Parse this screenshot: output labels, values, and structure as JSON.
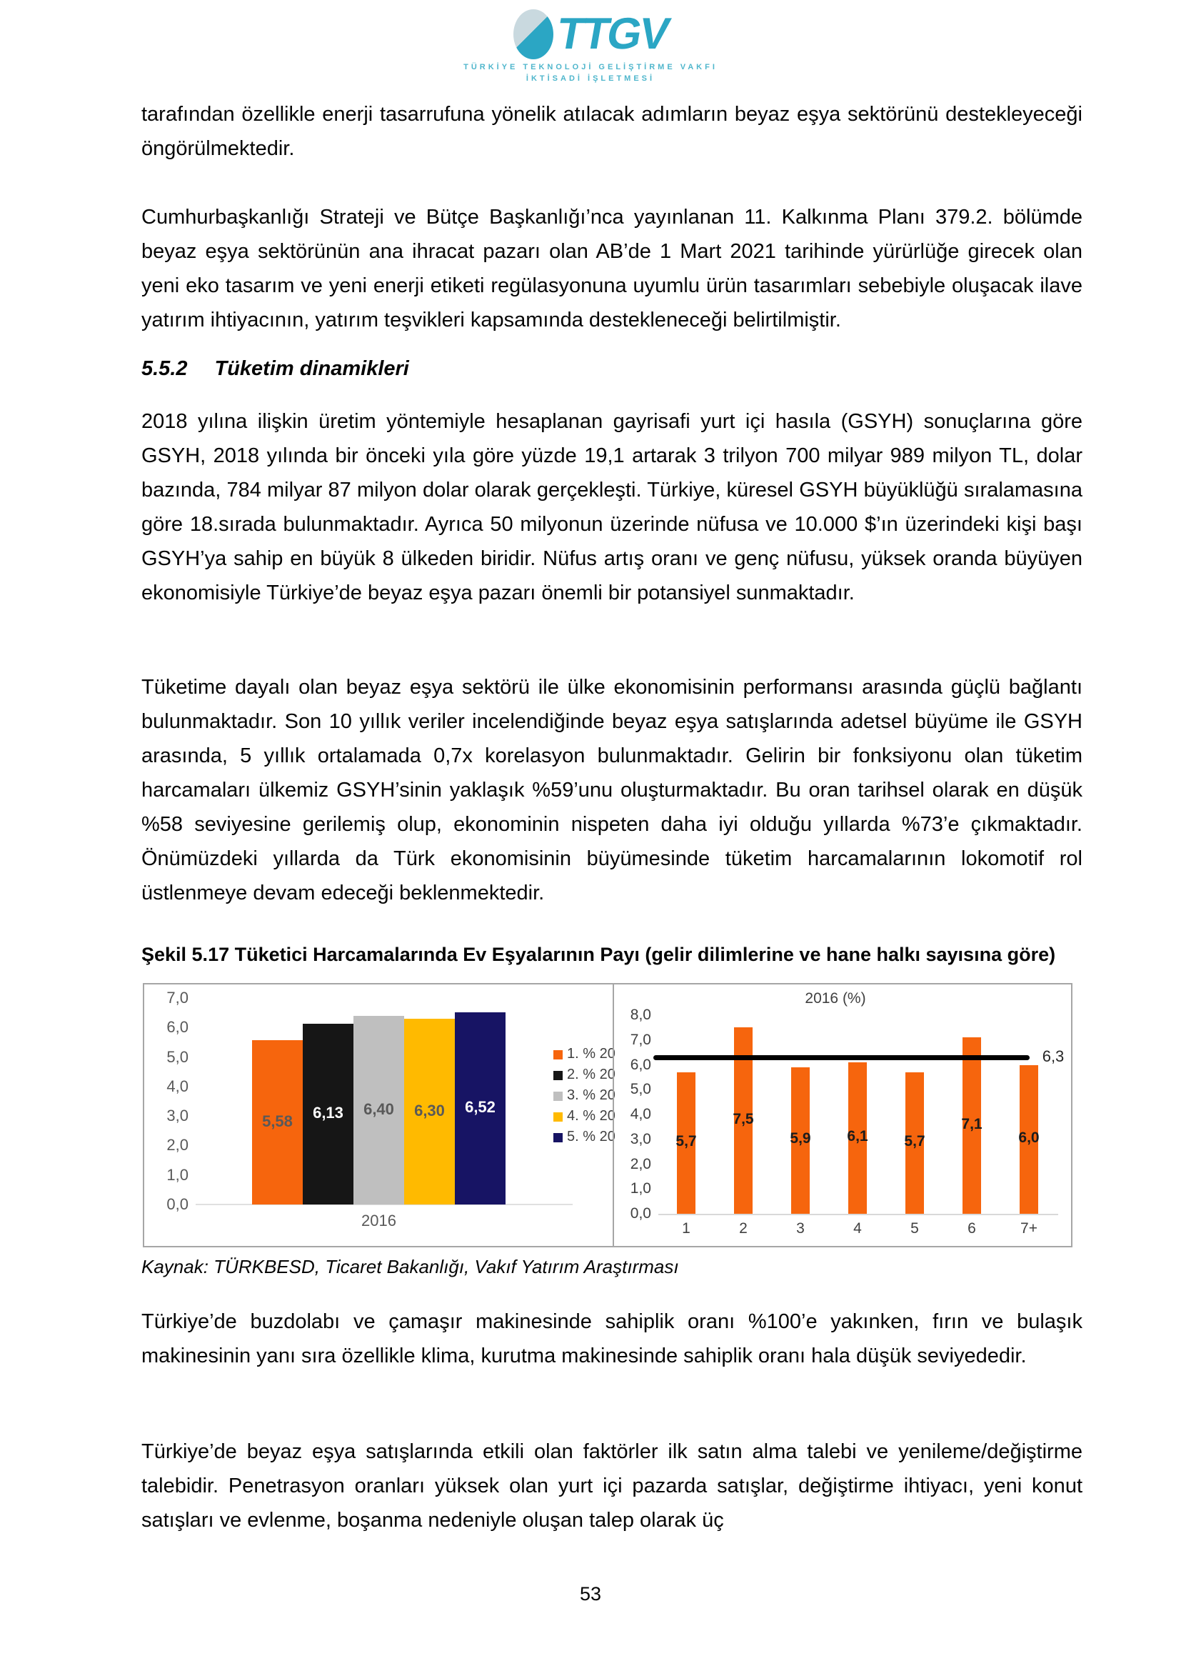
{
  "logo": {
    "acronym": "TTGV",
    "line1": "TÜRKİYE TEKNOLOJİ GELİŞTİRME VAKFI",
    "line2": "İKTİSADİ İŞLETMESİ",
    "teal": "#2BA6C4",
    "light": "#C9D9DF"
  },
  "paragraphs": {
    "p1": "tarafından özellikle enerji tasarrufuna yönelik atılacak adımların beyaz eşya sektörünü destekleyeceği öngörülmektedir.",
    "p2": "Cumhurbaşkanlığı Strateji ve Bütçe Başkanlığı’nca yayınlanan 11. Kalkınma Planı 379.2. bölümde beyaz eşya sektörünün ana ihracat pazarı olan AB’de 1 Mart 2021 tarihinde yürürlüğe girecek olan yeni eko tasarım ve yeni enerji etiketi regülasyonuna uyumlu ürün tasarımları sebebiyle oluşacak ilave yatırım ihtiyacının, yatırım teşvikleri kapsamında destekleneceği belirtilmiştir.",
    "p3": "2018 yılına ilişkin üretim yöntemiyle hesaplanan gayrisafi yurt içi hasıla (GSYH) sonuçlarına göre GSYH, 2018 yılında bir önceki yıla göre yüzde 19,1 artarak 3 trilyon 700 milyar 989 milyon TL, dolar bazında, 784 milyar 87 milyon dolar olarak gerçekleşti. Türkiye, küresel GSYH büyüklüğü sıralamasına göre 18.sırada bulunmaktadır. Ayrıca 50 milyonun üzerinde nüfusa ve 10.000 $’ın üzerindeki kişi başı GSYH’ya sahip en büyük 8 ülkeden biridir. Nüfus artış oranı ve genç nüfusu, yüksek oranda büyüyen ekonomisiyle Türkiye’de beyaz eşya pazarı önemli bir potansiyel sunmaktadır.",
    "p4": "Tüketime dayalı olan beyaz eşya sektörü ile ülke ekonomisinin performansı arasında güçlü bağlantı bulunmaktadır. Son 10 yıllık veriler incelendiğinde beyaz eşya satışlarında adetsel büyüme ile GSYH arasında, 5 yıllık ortalamada 0,7x korelasyon bulunmaktadır. Gelirin bir fonksiyonu olan tüketim harcamaları ülkemiz GSYH’sinin yaklaşık %59’unu oluşturmaktadır. Bu oran tarihsel olarak en düşük %58 seviyesine gerilemiş olup, ekonominin nispeten daha iyi olduğu yıllarda %73’e çıkmaktadır. Önümüzdeki yıllarda da Türk ekonomisinin büyümesinde tüketim harcamalarının lokomotif rol üstlenmeye devam edeceği beklenmektedir.",
    "p5": "Türkiye’de buzdolabı ve çamaşır makinesinde sahiplik oranı %100’e yakınken, fırın ve bulaşık makinesinin yanı sıra özellikle klima, kurutma makinesinde sahiplik oranı hala düşük seviyededir.",
    "p6": "Türkiye’de beyaz eşya satışlarında etkili olan faktörler ilk satın alma talebi ve yenileme/değiştirme talebidir. Penetrasyon oranları yüksek olan yurt içi pazarda satışlar, değiştirme ihtiyacı, yeni konut satışları ve evlenme, boşanma nedeniyle oluşan talep olarak üç"
  },
  "heading": {
    "number": "5.5.2",
    "title": "Tüketim dinamikleri"
  },
  "figure": {
    "caption": "Şekil 5.17 Tüketici Harcamalarında Ev Eşyalarının Payı (gelir dilimlerine ve hane halkı sayısına göre)",
    "source": "Kaynak: TÜRKBESD, Ticaret Bakanlığı, Vakıf Yatırım Araştırması"
  },
  "page": {
    "number": "53"
  },
  "chart_data": [
    {
      "type": "bar",
      "title": "",
      "categories": [
        "2016"
      ],
      "xlabel": "2016",
      "ylim": [
        0,
        7
      ],
      "yticks": [
        "7,0",
        "6,0",
        "5,0",
        "4,0",
        "3,0",
        "2,0",
        "1,0",
        "0,0"
      ],
      "legend_position": "right",
      "grid": false,
      "series": [
        {
          "name": "1. % 20",
          "values": [
            5.58
          ],
          "label": "5,58",
          "color": "#F6650D",
          "label_color": "#595959"
        },
        {
          "name": "2. % 20",
          "values": [
            6.13
          ],
          "label": "6,13",
          "color": "#161616",
          "label_color": "#FFFFFF"
        },
        {
          "name": "3. % 20",
          "values": [
            6.4
          ],
          "label": "6,40",
          "color": "#BFBFBF",
          "label_color": "#595959"
        },
        {
          "name": "4. % 20",
          "values": [
            6.3
          ],
          "label": "6,30",
          "color": "#FFBA00",
          "label_color": "#595959"
        },
        {
          "name": "5. % 20",
          "values": [
            6.52
          ],
          "label": "6,52",
          "color": "#171464",
          "label_color": "#FFFFFF"
        }
      ],
      "tick_color": "#595959",
      "xlabel_color": "#595959"
    },
    {
      "type": "bar",
      "title": "2016  (%)",
      "categories": [
        "1",
        "2",
        "3",
        "4",
        "5",
        "6",
        "7+"
      ],
      "values": [
        5.7,
        7.5,
        5.9,
        6.1,
        5.7,
        7.1,
        6.0
      ],
      "labels": [
        "5,7",
        "7,5",
        "5,9",
        "6,1",
        "5,7",
        "7,1",
        "6,0"
      ],
      "bar_color": "#F6650D",
      "label_color": "#1C1C1C",
      "ylim": [
        0,
        8
      ],
      "yticks": [
        "8,0",
        "7,0",
        "6,0",
        "5,0",
        "4,0",
        "3,0",
        "2,0",
        "1,0",
        "0,0"
      ],
      "grid": false,
      "ref_line": {
        "value": 6.3,
        "label": "6,3",
        "color": "#000000"
      },
      "tick_color": "#404040",
      "title_color": "#404040"
    }
  ]
}
